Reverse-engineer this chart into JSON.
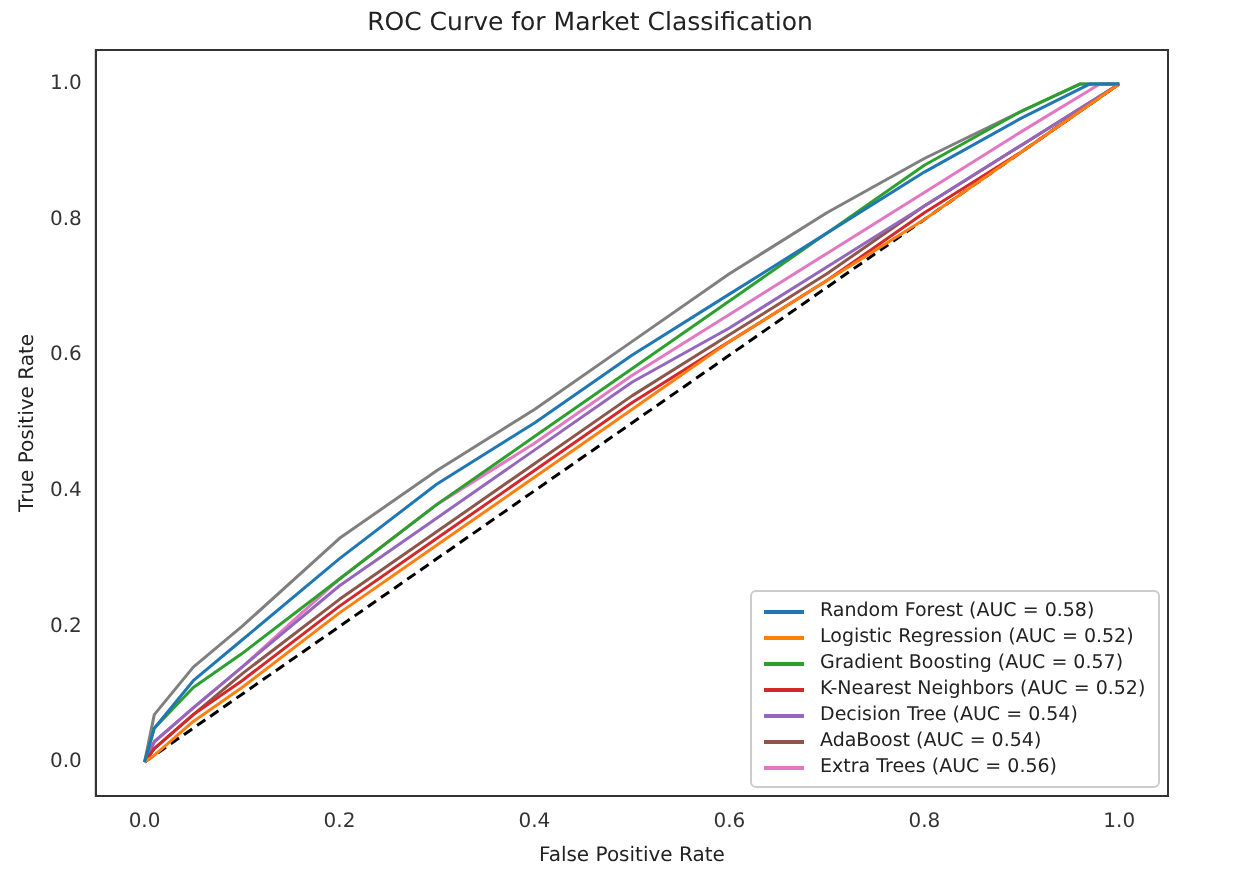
{
  "chart_data": {
    "type": "line",
    "title": "ROC Curve for Market Classification",
    "xlabel": "False Positive Rate",
    "ylabel": "True Positive Rate",
    "xlim": [
      -0.05,
      1.05
    ],
    "ylim": [
      -0.05,
      1.05
    ],
    "xticks": [
      {
        "value": 0,
        "label": "0.0"
      },
      {
        "value": 0.2,
        "label": "0.2"
      },
      {
        "value": 0.4,
        "label": "0.4"
      },
      {
        "value": 0.6,
        "label": "0.6"
      },
      {
        "value": 0.8,
        "label": "0.8"
      },
      {
        "value": 1,
        "label": "1.0"
      }
    ],
    "yticks": [
      {
        "value": 0,
        "label": "0.0"
      },
      {
        "value": 0.2,
        "label": "0.2"
      },
      {
        "value": 0.4,
        "label": "0.4"
      },
      {
        "value": 0.6,
        "label": "0.6"
      },
      {
        "value": 0.8,
        "label": "0.8"
      },
      {
        "value": 1,
        "label": "1.0"
      }
    ],
    "grid": false,
    "legend": "bottom right",
    "series": [
      {
        "name": "Random Forest (AUC = 0.58)",
        "color": "#1f77b4",
        "x": [
          0,
          0.01,
          0.05,
          0.1,
          0.2,
          0.3,
          0.4,
          0.5,
          0.6,
          0.7,
          0.8,
          0.9,
          0.97,
          1
        ],
        "values": [
          0,
          0.05,
          0.12,
          0.18,
          0.3,
          0.41,
          0.5,
          0.6,
          0.69,
          0.78,
          0.87,
          0.95,
          1,
          1
        ]
      },
      {
        "name": "Logistic Regression (AUC = 0.52)",
        "color": "#ff7f0e",
        "x": [
          0,
          0.01,
          0.05,
          0.1,
          0.2,
          0.3,
          0.4,
          0.5,
          0.6,
          0.7,
          0.8,
          0.9,
          1
        ],
        "values": [
          0,
          0.01,
          0.06,
          0.11,
          0.22,
          0.32,
          0.42,
          0.52,
          0.62,
          0.71,
          0.8,
          0.9,
          1
        ]
      },
      {
        "name": "Gradient Boosting (AUC = 0.57)",
        "color": "#2ca02c",
        "x": [
          0,
          0.01,
          0.05,
          0.1,
          0.2,
          0.3,
          0.4,
          0.5,
          0.6,
          0.7,
          0.8,
          0.9,
          0.96,
          1
        ],
        "values": [
          0,
          0.05,
          0.11,
          0.16,
          0.27,
          0.38,
          0.48,
          0.58,
          0.68,
          0.78,
          0.88,
          0.96,
          1,
          1
        ]
      },
      {
        "name": "K-Nearest Neighbors (AUC = 0.52)",
        "color": "#d62728",
        "x": [
          0,
          0.01,
          0.05,
          0.1,
          0.2,
          0.3,
          0.4,
          0.5,
          0.6,
          0.7,
          0.8,
          0.9,
          1
        ],
        "values": [
          0,
          0.02,
          0.07,
          0.12,
          0.23,
          0.33,
          0.43,
          0.53,
          0.62,
          0.71,
          0.81,
          0.9,
          1
        ]
      },
      {
        "name": "Decision Tree (AUC = 0.54)",
        "color": "#9467bd",
        "x": [
          0,
          0.01,
          0.05,
          0.1,
          0.2,
          0.3,
          0.4,
          0.5,
          0.6,
          0.7,
          0.8,
          0.9,
          1
        ],
        "values": [
          0,
          0.03,
          0.08,
          0.14,
          0.26,
          0.36,
          0.46,
          0.56,
          0.64,
          0.73,
          0.82,
          0.91,
          1
        ]
      },
      {
        "name": "AdaBoost (AUC = 0.54)",
        "color": "#8c564b",
        "x": [
          0,
          0.01,
          0.05,
          0.1,
          0.2,
          0.3,
          0.4,
          0.5,
          0.6,
          0.7,
          0.8,
          0.9,
          1
        ],
        "values": [
          0,
          0.02,
          0.07,
          0.13,
          0.24,
          0.34,
          0.44,
          0.54,
          0.63,
          0.72,
          0.82,
          0.91,
          1
        ]
      },
      {
        "name": "Extra Trees (AUC = 0.56)",
        "color": "#e377c2",
        "x": [
          0,
          0.01,
          0.05,
          0.1,
          0.2,
          0.3,
          0.4,
          0.5,
          0.6,
          0.7,
          0.8,
          0.9,
          0.98,
          1
        ],
        "values": [
          0,
          0.03,
          0.08,
          0.14,
          0.27,
          0.38,
          0.47,
          0.57,
          0.66,
          0.75,
          0.84,
          0.93,
          1,
          1
        ]
      },
      {
        "color": "#7f7f7f",
        "x": [
          0,
          0.01,
          0.05,
          0.1,
          0.2,
          0.3,
          0.4,
          0.5,
          0.6,
          0.7,
          0.8,
          0.9,
          0.96,
          1
        ],
        "values": [
          0,
          0.07,
          0.14,
          0.2,
          0.33,
          0.43,
          0.52,
          0.62,
          0.72,
          0.81,
          0.89,
          0.96,
          1,
          1
        ]
      },
      {
        "color": "#000000",
        "line_style": "dashed",
        "x": [
          0,
          1
        ],
        "values": [
          0,
          1
        ]
      }
    ]
  }
}
